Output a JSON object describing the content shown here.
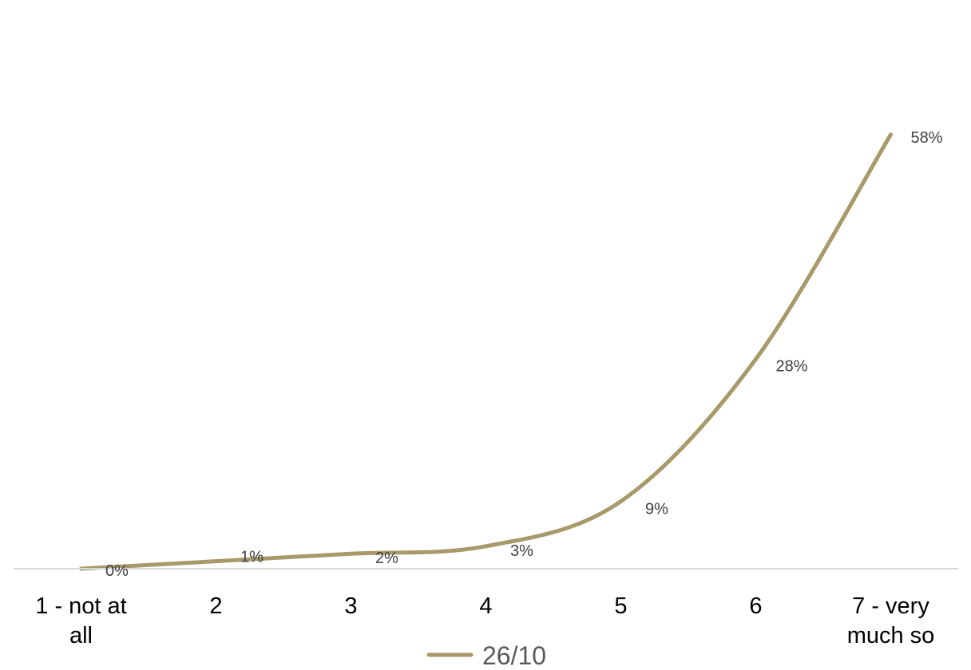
{
  "chart_data": {
    "type": "line",
    "categories": [
      [
        "1 - not at",
        "all"
      ],
      [
        "2"
      ],
      [
        "3"
      ],
      [
        "4"
      ],
      [
        "5"
      ],
      [
        "6"
      ],
      [
        "7 - very",
        "much so"
      ]
    ],
    "series": [
      {
        "name": "26/10",
        "values": [
          0,
          1,
          2,
          3,
          9,
          28,
          58
        ],
        "labels": [
          "0%",
          "1%",
          "2%",
          "3%",
          "9%",
          "28%",
          "58%"
        ]
      }
    ],
    "ylim": [
      0,
      60
    ],
    "grid": false,
    "legend_position": "bottom",
    "smooth": true,
    "colors": {
      "line": "#A89968",
      "axis": "#D9D9D9"
    }
  }
}
